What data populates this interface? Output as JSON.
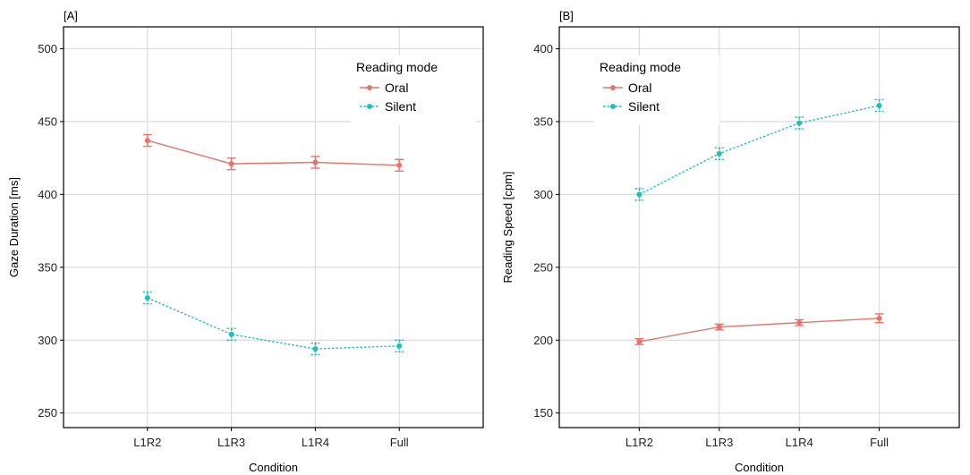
{
  "colors": {
    "oral": "#e8736c",
    "silent": "#1fbfbf"
  },
  "chart_data": [
    {
      "type": "line",
      "panel_label": "[A]",
      "categories": [
        "L1R2",
        "L1R3",
        "L1R4",
        "Full"
      ],
      "xlabel": "Condition",
      "ylabel": "Gaze Duration [ms]",
      "ylim": [
        240,
        515
      ],
      "yticks": [
        250,
        300,
        350,
        400,
        450,
        500
      ],
      "grid": true,
      "legend": {
        "title": "Reading mode",
        "placement": "top-right"
      },
      "series": [
        {
          "name": "Oral",
          "key": "oral",
          "dashed": false,
          "values": [
            437,
            421,
            422,
            420
          ],
          "errors": [
            4,
            4,
            4,
            4
          ]
        },
        {
          "name": "Silent",
          "key": "silent",
          "dashed": true,
          "values": [
            329,
            304,
            294,
            296
          ],
          "errors": [
            4,
            4,
            4,
            4
          ]
        }
      ]
    },
    {
      "type": "line",
      "panel_label": "[B]",
      "categories": [
        "L1R2",
        "L1R3",
        "L1R4",
        "Full"
      ],
      "xlabel": "Condition",
      "ylabel": "Reading Speed [cpm]",
      "ylim": [
        140,
        415
      ],
      "yticks": [
        150,
        200,
        250,
        300,
        350,
        400
      ],
      "grid": true,
      "legend": {
        "title": "Reading mode",
        "placement": "top-left"
      },
      "series": [
        {
          "name": "Oral",
          "key": "oral",
          "dashed": false,
          "values": [
            199,
            209,
            212,
            215
          ],
          "errors": [
            2,
            2,
            2,
            3
          ]
        },
        {
          "name": "Silent",
          "key": "silent",
          "dashed": true,
          "values": [
            300,
            328,
            349,
            361
          ],
          "errors": [
            4,
            4,
            4,
            4
          ]
        }
      ]
    }
  ]
}
